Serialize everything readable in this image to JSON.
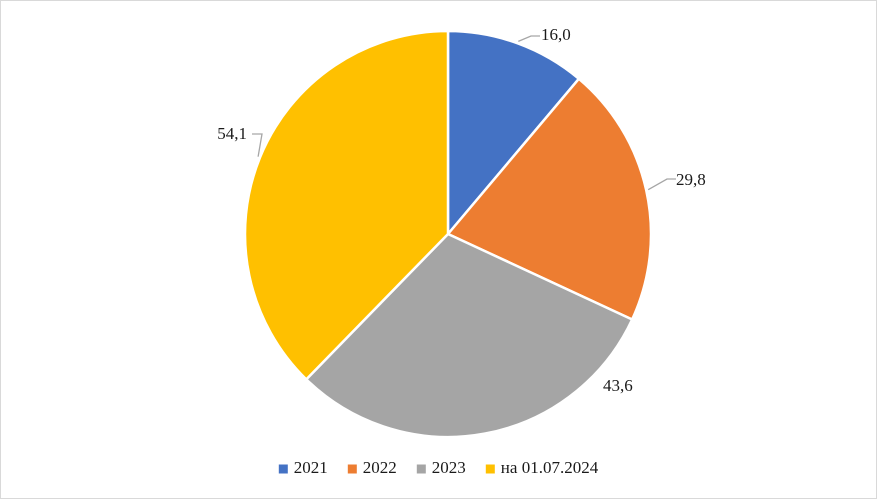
{
  "chart_data": {
    "type": "pie",
    "title": "",
    "categories": [
      "2021",
      "2022",
      "2023",
      "на 01.07.2024"
    ],
    "values": [
      16.0,
      29.8,
      43.6,
      54.1
    ],
    "data_labels": [
      "16,0",
      "29,8",
      "43,6",
      "54,1"
    ],
    "colors": [
      "#4472C4",
      "#ED7D31",
      "#A5A5A5",
      "#FFC000"
    ],
    "legend": {
      "placement": "bottom",
      "entries": [
        "2021",
        "2022",
        "2023",
        "на 01.07.2024"
      ]
    },
    "start_angle_deg": 0,
    "direction": "clockwise"
  }
}
